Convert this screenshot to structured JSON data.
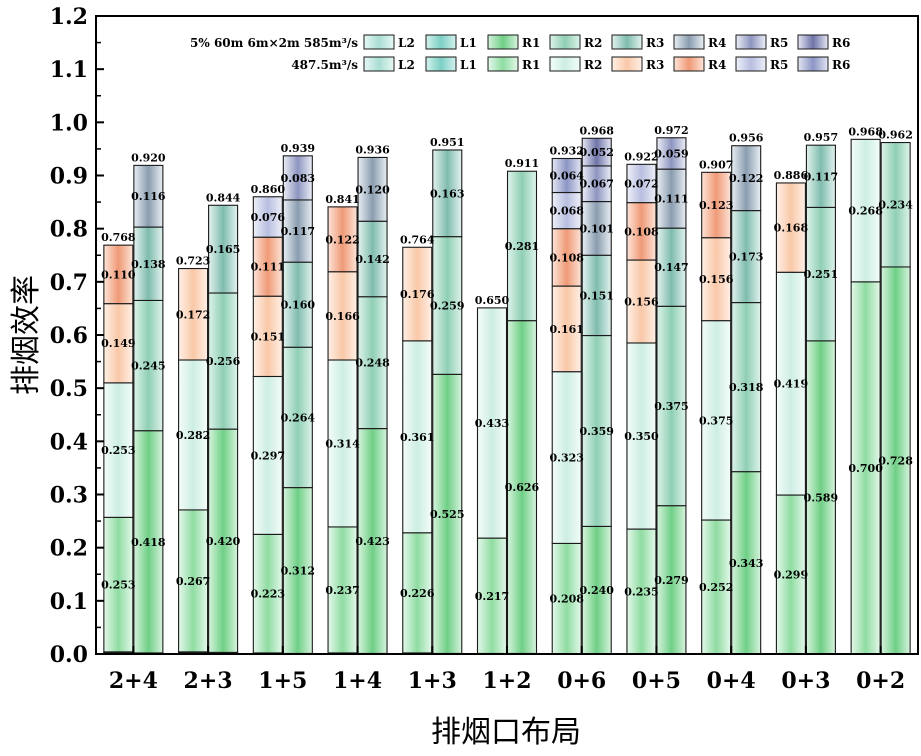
{
  "chart_data": {
    "type": "bar",
    "stacked": true,
    "xlabel": "排烟口布局",
    "ylabel": "排烟效率",
    "ylim": [
      0,
      1.2
    ],
    "yticks": [
      "0.0",
      "0.1",
      "0.2",
      "0.3",
      "0.4",
      "0.5",
      "0.6",
      "0.7",
      "0.8",
      "0.9",
      "1.0",
      "1.1",
      "1.2"
    ],
    "categories": [
      "2+4",
      "2+3",
      "1+5",
      "1+4",
      "1+3",
      "1+2",
      "0+6",
      "0+5",
      "0+4",
      "0+3",
      "0+2"
    ],
    "legend": {
      "placement": "top",
      "rows": [
        {
          "label": "5% 60m 6m×2m 585m³/s",
          "entries": [
            "L2",
            "L1",
            "R1",
            "R2",
            "R3",
            "R4",
            "R5",
            "R6"
          ]
        },
        {
          "label": "487.5m³/s",
          "entries": [
            "L2",
            "L1",
            "R1",
            "R2",
            "R3",
            "R4",
            "R5",
            "R6"
          ]
        }
      ]
    },
    "segment_colors": {
      "L2": "#cfeee9",
      "L1": "#9edad2",
      "R1": "#c2eecd",
      "R2": "#e4f7f1",
      "R3": "#fcd9c4",
      "R4": "#f6b59a",
      "R5": "#d9dbee",
      "R6": "#b3bad8"
    },
    "series_585": [
      {
        "category": "2+4",
        "total": "0.920",
        "segments": [
          {
            "key": "L2",
            "value": 0.001
          },
          {
            "key": "L1",
            "value": 0.001
          },
          {
            "key": "R1",
            "value": 0.418,
            "label": "0.418"
          },
          {
            "key": "R2",
            "value": 0.245,
            "label": "0.245"
          },
          {
            "key": "R3",
            "value": 0.138,
            "label": "0.138"
          },
          {
            "key": "R4",
            "value": 0.116,
            "label": "0.116"
          }
        ]
      },
      {
        "category": "2+3",
        "total": "0.844",
        "segments": [
          {
            "key": "L2",
            "value": 0.001
          },
          {
            "key": "L1",
            "value": 0.002
          },
          {
            "key": "R1",
            "value": 0.42,
            "label": "0.420"
          },
          {
            "key": "R2",
            "value": 0.256,
            "label": "0.256"
          },
          {
            "key": "R3",
            "value": 0.165,
            "label": "0.165"
          }
        ]
      },
      {
        "category": "1+5",
        "total": "0.939",
        "segments": [
          {
            "key": "L1",
            "value": 0.001
          },
          {
            "key": "R1",
            "value": 0.312,
            "label": "0.312"
          },
          {
            "key": "R2",
            "value": 0.264,
            "label": "0.264"
          },
          {
            "key": "R3",
            "value": 0.16,
            "label": "0.160"
          },
          {
            "key": "R4",
            "value": 0.117,
            "label": "0.117"
          },
          {
            "key": "R5",
            "value": 0.083,
            "label": "0.083"
          }
        ]
      },
      {
        "category": "1+4",
        "total": "0.936",
        "segments": [
          {
            "key": "L1",
            "value": 0.001
          },
          {
            "key": "R1",
            "value": 0.423,
            "label": "0.423"
          },
          {
            "key": "R2",
            "value": 0.248,
            "label": "0.248"
          },
          {
            "key": "R3",
            "value": 0.142,
            "label": "0.142"
          },
          {
            "key": "R4",
            "value": 0.12,
            "label": "0.120"
          }
        ]
      },
      {
        "category": "1+3",
        "total": "0.951",
        "segments": [
          {
            "key": "L1",
            "value": 0.001
          },
          {
            "key": "R1",
            "value": 0.525,
            "label": "0.525"
          },
          {
            "key": "R2",
            "value": 0.259,
            "label": "0.259"
          },
          {
            "key": "R3",
            "value": 0.163,
            "label": "0.163"
          }
        ]
      },
      {
        "category": "1+2",
        "total": "0.911",
        "segments": [
          {
            "key": "L1",
            "value": 0.001
          },
          {
            "key": "R1",
            "value": 0.626,
            "label": "0.626"
          },
          {
            "key": "R2",
            "value": 0.281,
            "label": "0.281"
          }
        ]
      },
      {
        "category": "0+6",
        "total": "0.968",
        "segments": [
          {
            "key": "R1",
            "value": 0.24,
            "label": "0.240"
          },
          {
            "key": "R2",
            "value": 0.359,
            "label": "0.359"
          },
          {
            "key": "R3",
            "value": 0.151,
            "label": "0.151"
          },
          {
            "key": "R4",
            "value": 0.101,
            "label": "0.101"
          },
          {
            "key": "R5",
            "value": 0.067,
            "label": "0.067"
          },
          {
            "key": "R6",
            "value": 0.052,
            "label": "0.052"
          }
        ]
      },
      {
        "category": "0+5",
        "total": "0.972",
        "segments": [
          {
            "key": "R1",
            "value": 0.279,
            "label": "0.279"
          },
          {
            "key": "R2",
            "value": 0.375,
            "label": "0.375"
          },
          {
            "key": "R3",
            "value": 0.147,
            "label": "0.147"
          },
          {
            "key": "R4",
            "value": 0.111,
            "label": "0.111"
          },
          {
            "key": "R5",
            "value": 0.059,
            "label": "0.059"
          }
        ]
      },
      {
        "category": "0+4",
        "total": "0.956",
        "segments": [
          {
            "key": "R1",
            "value": 0.343,
            "label": "0.343"
          },
          {
            "key": "R2",
            "value": 0.318,
            "label": "0.318"
          },
          {
            "key": "R3",
            "value": 0.173,
            "label": "0.173"
          },
          {
            "key": "R4",
            "value": 0.122,
            "label": "0.122"
          }
        ]
      },
      {
        "category": "0+3",
        "total": "0.957",
        "segments": [
          {
            "key": "R1",
            "value": 0.589,
            "label": "0.589"
          },
          {
            "key": "R2",
            "value": 0.251,
            "label": "0.251"
          },
          {
            "key": "R3",
            "value": 0.117,
            "label": "0.117"
          }
        ]
      },
      {
        "category": "0+2",
        "total": "0.962",
        "segments": [
          {
            "key": "R1",
            "value": 0.728,
            "label": "0.728"
          },
          {
            "key": "R2",
            "value": 0.234,
            "label": "0.234"
          }
        ]
      }
    ],
    "series_487_5": [
      {
        "category": "2+4",
        "total": "0.768",
        "segments": [
          {
            "key": "L2",
            "value": 0.002
          },
          {
            "key": "L1",
            "value": 0.002
          },
          {
            "key": "R1",
            "value": 0.253,
            "label": "0.253"
          },
          {
            "key": "R2",
            "value": 0.253,
            "label": "0.253"
          },
          {
            "key": "R3",
            "value": 0.149,
            "label": "0.149"
          },
          {
            "key": "R4",
            "value": 0.11,
            "label": "0.110"
          }
        ]
      },
      {
        "category": "2+3",
        "total": "0.723",
        "segments": [
          {
            "key": "L2",
            "value": 0.002
          },
          {
            "key": "L1",
            "value": 0.002
          },
          {
            "key": "R1",
            "value": 0.267,
            "label": "0.267"
          },
          {
            "key": "R2",
            "value": 0.282,
            "label": "0.282"
          },
          {
            "key": "R3",
            "value": 0.172,
            "label": "0.172"
          }
        ]
      },
      {
        "category": "1+5",
        "total": "0.860",
        "segments": [
          {
            "key": "L1",
            "value": 0.002
          },
          {
            "key": "R1",
            "value": 0.223,
            "label": "0.223"
          },
          {
            "key": "R2",
            "value": 0.297,
            "label": "0.297"
          },
          {
            "key": "R3",
            "value": 0.151,
            "label": "0.151"
          },
          {
            "key": "R4",
            "value": 0.111,
            "label": "0.111"
          },
          {
            "key": "R5",
            "value": 0.076,
            "label": "0.076"
          }
        ]
      },
      {
        "category": "1+4",
        "total": "0.841",
        "segments": [
          {
            "key": "L1",
            "value": 0.002
          },
          {
            "key": "R1",
            "value": 0.237,
            "label": "0.237"
          },
          {
            "key": "R2",
            "value": 0.314,
            "label": "0.314"
          },
          {
            "key": "R3",
            "value": 0.166,
            "label": "0.166"
          },
          {
            "key": "R4",
            "value": 0.122,
            "label": "0.122"
          }
        ]
      },
      {
        "category": "1+3",
        "total": "0.764",
        "segments": [
          {
            "key": "L1",
            "value": 0.002
          },
          {
            "key": "R1",
            "value": 0.226,
            "label": "0.226"
          },
          {
            "key": "R2",
            "value": 0.361,
            "label": "0.361"
          },
          {
            "key": "R3",
            "value": 0.176,
            "label": "0.176"
          }
        ]
      },
      {
        "category": "1+2",
        "total": "0.650",
        "segments": [
          {
            "key": "L1",
            "value": 0.001
          },
          {
            "key": "R1",
            "value": 0.217,
            "label": "0.217"
          },
          {
            "key": "R2",
            "value": 0.433,
            "label": "0.433"
          }
        ]
      },
      {
        "category": "0+6",
        "total": "0.932",
        "segments": [
          {
            "key": "R1",
            "value": 0.208,
            "label": "0.208"
          },
          {
            "key": "R2",
            "value": 0.323,
            "label": "0.323"
          },
          {
            "key": "R3",
            "value": 0.161,
            "label": "0.161"
          },
          {
            "key": "R4",
            "value": 0.108,
            "label": "0.108"
          },
          {
            "key": "R5",
            "value": 0.068,
            "label": "0.068"
          },
          {
            "key": "R6",
            "value": 0.064,
            "label": "0.064"
          }
        ]
      },
      {
        "category": "0+5",
        "total": "0.922",
        "segments": [
          {
            "key": "R1",
            "value": 0.235,
            "label": "0.235"
          },
          {
            "key": "R2",
            "value": 0.35,
            "label": "0.350"
          },
          {
            "key": "R3",
            "value": 0.156,
            "label": "0.156"
          },
          {
            "key": "R4",
            "value": 0.108,
            "label": "0.108"
          },
          {
            "key": "R5",
            "value": 0.072,
            "label": "0.072"
          }
        ]
      },
      {
        "category": "0+4",
        "total": "0.907",
        "segments": [
          {
            "key": "R1",
            "value": 0.252,
            "label": "0.252"
          },
          {
            "key": "R2",
            "value": 0.375,
            "label": "0.375"
          },
          {
            "key": "R3",
            "value": 0.156,
            "label": "0.156"
          },
          {
            "key": "R4",
            "value": 0.123,
            "label": "0.123"
          }
        ]
      },
      {
        "category": "0+3",
        "total": "0.886",
        "segments": [
          {
            "key": "R1",
            "value": 0.299,
            "label": "0.299"
          },
          {
            "key": "R2",
            "value": 0.419,
            "label": "0.419"
          },
          {
            "key": "R3",
            "value": 0.168,
            "label": "0.168"
          }
        ]
      },
      {
        "category": "0+2",
        "total": "0.968",
        "segments": [
          {
            "key": "R1",
            "value": 0.7,
            "label": "0.700"
          },
          {
            "key": "R2",
            "value": 0.268,
            "label": "0.268"
          }
        ]
      }
    ]
  }
}
